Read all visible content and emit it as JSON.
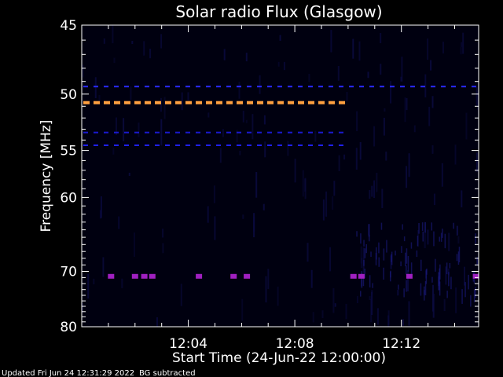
{
  "title": "Solar radio Flux (Glasgow)",
  "footer": {
    "updated": "Updated Fri Jun 24 12:31:29 2022",
    "note": "BG subtracted"
  },
  "chart_data": {
    "type": "heatmap",
    "title": "Solar radio Flux (Glasgow)",
    "xlabel": "Start Time (24-Jun-22 12:00:00)",
    "ylabel": "Frequency [MHz]",
    "x_start": "12:00",
    "x_end": "12:15",
    "xlim_minutes": [
      0,
      14.9
    ],
    "ylim": [
      45,
      80
    ],
    "y_scale": "reciprocal",
    "xticks": [
      {
        "minute": 4,
        "label": "12:04"
      },
      {
        "minute": 8,
        "label": "12:08"
      },
      {
        "minute": 12,
        "label": "12:12"
      }
    ],
    "yticks": [
      {
        "value": 45,
        "label": "45"
      },
      {
        "value": 50,
        "label": "50"
      },
      {
        "value": 55,
        "label": "55"
      },
      {
        "value": 60,
        "label": "60"
      },
      {
        "value": 70,
        "label": "70"
      },
      {
        "value": 80,
        "label": "80"
      }
    ],
    "background_color": "#000010",
    "features": [
      {
        "kind": "dashed_line",
        "freq_mhz": 50.7,
        "from_min": 0,
        "to_min": 10.2,
        "color": "#ffa040"
      },
      {
        "kind": "dashed_line",
        "freq_mhz": 49.4,
        "from_min": 0,
        "to_min": 14.9,
        "color": "#2a2aff"
      },
      {
        "kind": "dashed_line",
        "freq_mhz": 53.3,
        "from_min": 0,
        "to_min": 10.2,
        "color": "#1a1ad0"
      },
      {
        "kind": "dashed_line",
        "freq_mhz": 54.5,
        "from_min": 0,
        "to_min": 10.2,
        "color": "#2020ff"
      },
      {
        "kind": "spots",
        "freq_mhz": 70.8,
        "minutes": [
          1.1,
          2.0,
          2.35,
          2.65,
          4.4,
          5.7,
          6.2,
          10.2,
          10.5,
          12.3,
          14.8
        ],
        "color": "#a020c0"
      }
    ]
  }
}
